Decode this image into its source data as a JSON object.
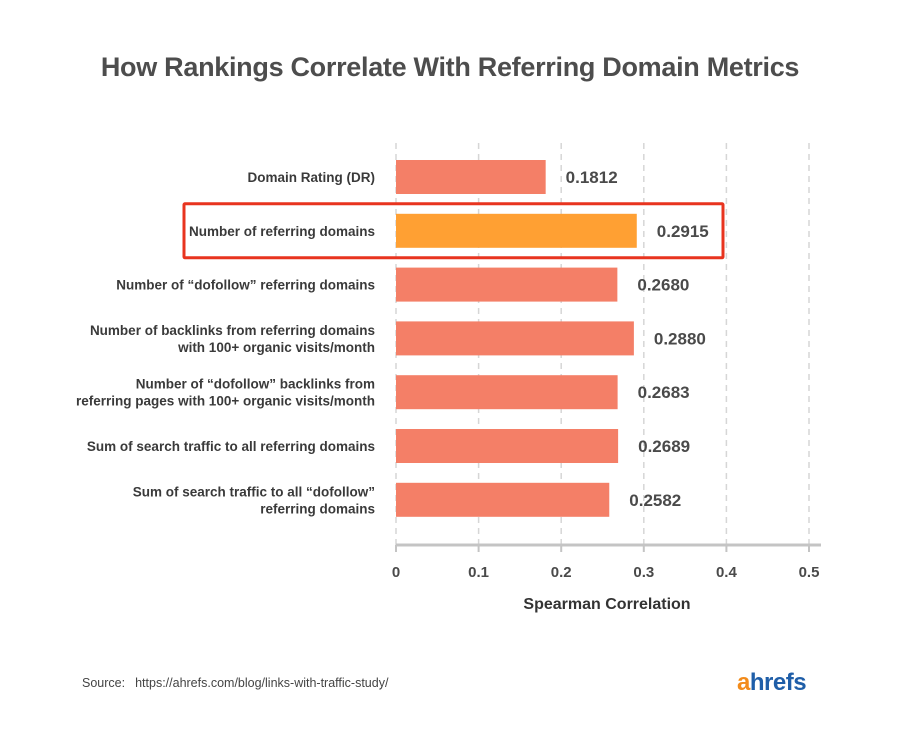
{
  "chart_data": {
    "type": "bar",
    "orientation": "horizontal",
    "title": "How Rankings Correlate With Referring Domain Metrics",
    "xlabel": "Spearman Correlation",
    "ylabel": "",
    "xlim": [
      0,
      0.5
    ],
    "xticks": [
      "0",
      "0.1",
      "0.2",
      "0.3",
      "0.4",
      "0.5"
    ],
    "grid": "vertical-dashed",
    "categories": [
      [
        "Domain Rating (DR)"
      ],
      [
        "Number of referring domains"
      ],
      [
        "Number of “dofollow” referring domains"
      ],
      [
        "Number of backlinks from referring domains",
        "with 100+ organic visits/month"
      ],
      [
        "Number of “dofollow” backlinks from",
        "referring pages with 100+ organic visits/month"
      ],
      [
        "Sum of search traffic to all referring domains"
      ],
      [
        "Sum of search traffic to all “dofollow”",
        "referring domains"
      ]
    ],
    "values": [
      0.1812,
      0.2915,
      0.268,
      0.288,
      0.2683,
      0.2689,
      0.2582
    ],
    "value_labels": [
      "0.1812",
      "0.2915",
      "0.2680",
      "0.2880",
      "0.2683",
      "0.2689",
      "0.2582"
    ],
    "highlight_index": 1,
    "colors": {
      "bar": "#f47f67",
      "highlight_bar": "#ffa033",
      "highlight_box": "#e8341f",
      "grid": "#d6d6d6",
      "axis": "#c4c4c4"
    }
  },
  "source": {
    "label": "Source:",
    "url": "https://ahrefs.com/blog/links-with-traffic-study/"
  },
  "logo": {
    "first": "a",
    "rest": "hrefs"
  }
}
